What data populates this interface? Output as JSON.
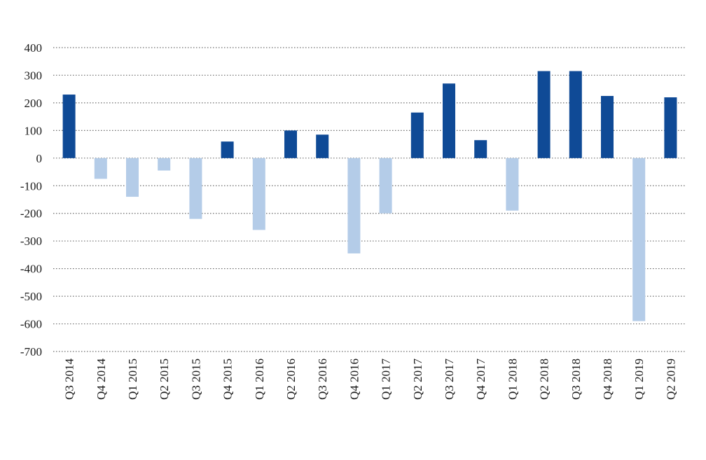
{
  "chart_data": {
    "type": "bar",
    "title": "",
    "xlabel": "",
    "ylabel": "",
    "ylim": [
      -700,
      400
    ],
    "yticks": [
      400,
      300,
      200,
      100,
      0,
      -100,
      -200,
      -300,
      -400,
      -500,
      -600,
      -700
    ],
    "grid": "horizontal dotted",
    "legend": "none",
    "colors": {
      "positive": "#0f4a96",
      "negative": "#b4cce8"
    },
    "categories": [
      "Q3 2014",
      "Q4 2014",
      "Q1 2015",
      "Q2 2015",
      "Q3 2015",
      "Q4 2015",
      "Q1 2016",
      "Q2 2016",
      "Q3 2016",
      "Q4 2016",
      "Q1 2017",
      "Q2 2017",
      "Q3 2017",
      "Q4 2017",
      "Q1 2018",
      "Q2 2018",
      "Q3 2018",
      "Q4 2018",
      "Q1 2019",
      "Q2 2019"
    ],
    "values": [
      230,
      -75,
      -140,
      -45,
      -220,
      60,
      -260,
      100,
      85,
      -345,
      -200,
      165,
      270,
      65,
      -190,
      315,
      315,
      225,
      -590,
      220
    ]
  }
}
